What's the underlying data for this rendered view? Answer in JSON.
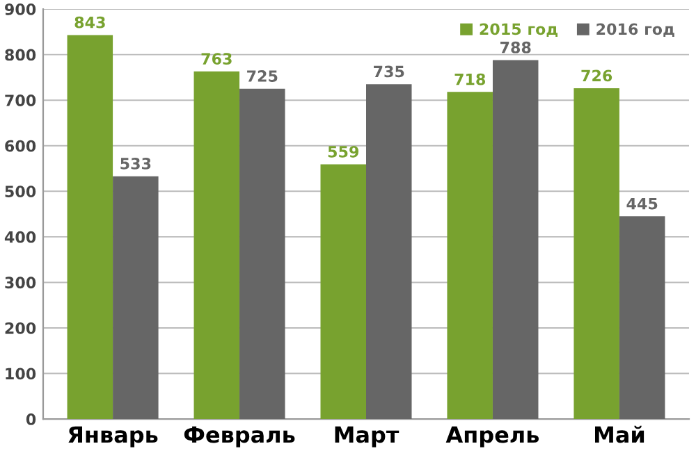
{
  "chart_data": {
    "type": "bar",
    "categories": [
      "Январь",
      "Февраль",
      "Март",
      "Апрель",
      "Май"
    ],
    "series": [
      {
        "name": "2015 год",
        "color": "#78a22f",
        "values": [
          843,
          763,
          559,
          718,
          726
        ]
      },
      {
        "name": "2016 год",
        "color": "#666666",
        "values": [
          533,
          725,
          735,
          788,
          445
        ]
      }
    ],
    "ylim": [
      0,
      900
    ],
    "yticks": [
      0,
      100,
      200,
      300,
      400,
      500,
      600,
      700,
      800,
      900
    ],
    "grid": "y",
    "legend": "top right",
    "data_labels": true
  }
}
